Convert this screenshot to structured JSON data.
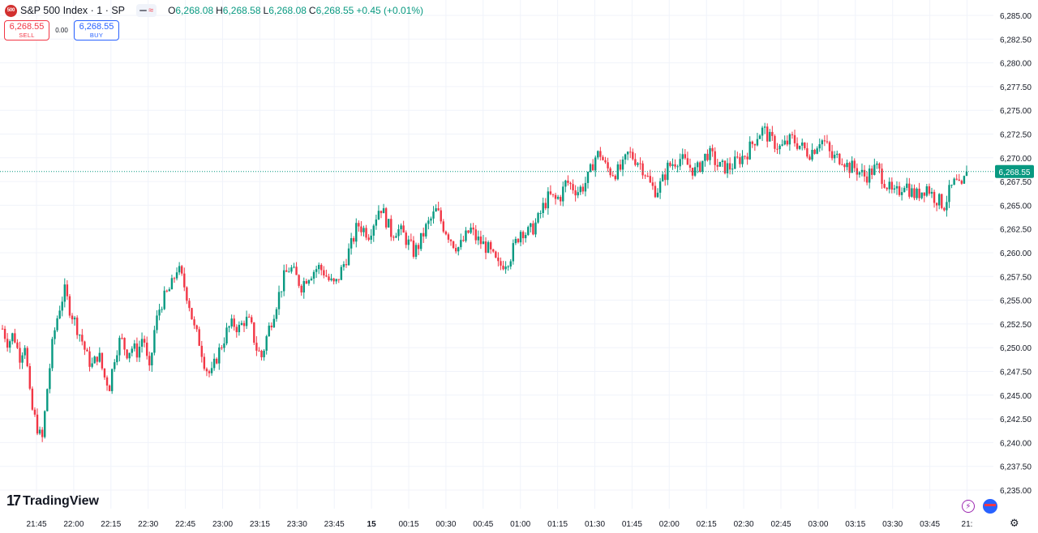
{
  "header": {
    "symbol_icon_text": "500",
    "title": "S&P 500 Index · 1 · SP",
    "ohlc": [
      {
        "key": "O",
        "value": "6,268.08"
      },
      {
        "key": "H",
        "value": "6,268.58"
      },
      {
        "key": "L",
        "value": "6,268.08"
      },
      {
        "key": "C",
        "value": "6,268.55"
      }
    ],
    "change": "+0.45 (+0.01%)"
  },
  "trade": {
    "sell_price": "6,268.55",
    "sell_label": "SELL",
    "spread": "0.00",
    "buy_price": "6,268.55",
    "buy_label": "BUY"
  },
  "branding": {
    "logo_mark": "17",
    "logo_text": "TradingView"
  },
  "colors": {
    "up": "#089981",
    "down": "#f23645",
    "grid": "#f0f3fa",
    "price_line": "#089981"
  },
  "chart_data": {
    "type": "candlestick",
    "ylim": [
      6233.75,
      6286.25
    ],
    "y_ticks": [
      6235,
      6237.5,
      6240,
      6242.5,
      6245,
      6247.5,
      6250,
      6252.5,
      6255,
      6257.5,
      6260,
      6262.5,
      6265,
      6267.5,
      6270,
      6272.5,
      6275,
      6277.5,
      6280,
      6282.5,
      6285
    ],
    "y_tick_labels": [
      "6,235.00",
      "6,237.50",
      "6,240.00",
      "6,242.50",
      "6,245.00",
      "6,247.50",
      "6,250.00",
      "6,252.50",
      "6,255.00",
      "6,257.50",
      "6,260.00",
      "6,262.50",
      "6,265.00",
      "6,267.50",
      "6,270.00",
      "6,272.50",
      "6,275.00",
      "6,277.50",
      "6,280.00",
      "6,282.50",
      "6,285.00"
    ],
    "x_ticks": [
      "21:45",
      "22:00",
      "22:15",
      "22:30",
      "22:45",
      "23:00",
      "23:15",
      "23:30",
      "23:45",
      "15",
      "00:15",
      "00:30",
      "00:45",
      "01:00",
      "01:15",
      "01:30",
      "01:45",
      "02:00",
      "02:15",
      "02:30",
      "02:45",
      "03:00",
      "03:15",
      "03:30",
      "03:45",
      "21:"
    ],
    "current_price": 6268.55,
    "current_price_label": "6,268.55",
    "close_path": [
      6252,
      6250.5,
      6251.5,
      6249,
      6250.5,
      6244,
      6242,
      6240,
      6246,
      6251,
      6254,
      6256,
      6254,
      6252.5,
      6251,
      6249,
      6248,
      6249.5,
      6247,
      6246,
      6249.5,
      6251,
      6249.5,
      6250,
      6249.5,
      6251.5,
      6247,
      6252,
      6254.5,
      6255.5,
      6256.5,
      6258.5,
      6257,
      6255,
      6252,
      6250.5,
      6248,
      6247,
      6249,
      6250.5,
      6252,
      6252.5,
      6252,
      6253,
      6252.5,
      6250,
      6249,
      6251.5,
      6253.5,
      6255.5,
      6257.5,
      6258.5,
      6257.5,
      6256.5,
      6257.5,
      6258,
      6258.5,
      6258,
      6257,
      6256.5,
      6258,
      6259.5,
      6261,
      6263,
      6262.5,
      6262,
      6263.5,
      6265,
      6263.5,
      6262,
      6262.5,
      6262,
      6261,
      6260,
      6261,
      6262.5,
      6263.5,
      6264.5,
      6263,
      6262,
      6261,
      6260.5,
      6261.5,
      6262.5,
      6261.5,
      6261,
      6260.5,
      6259.5,
      6258.5,
      6259,
      6259.5,
      6261,
      6262.5,
      6262,
      6262.5,
      6263.5,
      6265,
      6266,
      6265.5,
      6266,
      6267.5,
      6267,
      6266.5,
      6267,
      6268,
      6270,
      6270.5,
      6269,
      6268.5,
      6268.5,
      6269,
      6270.5,
      6270,
      6269.5,
      6268.5,
      6267,
      6266.5,
      6267.5,
      6269,
      6269.5,
      6270,
      6269.5,
      6269,
      6268.5,
      6269.5,
      6270.5,
      6270,
      6269,
      6269,
      6269,
      6269.5,
      6270,
      6270.5,
      6271.5,
      6272.5,
      6273,
      6272,
      6271.5,
      6271,
      6271.5,
      6272,
      6271.5,
      6271,
      6270.5,
      6271,
      6272,
      6271.5,
      6270,
      6270,
      6270,
      6269,
      6269,
      6268.5,
      6268,
      6268.5,
      6269,
      6268,
      6267,
      6266,
      6266.5,
      6267.5,
      6266.5,
      6266,
      6266.5,
      6267,
      6266,
      6265.5,
      6265,
      6266.5,
      6267.5,
      6266.5,
      6268.55
    ]
  }
}
